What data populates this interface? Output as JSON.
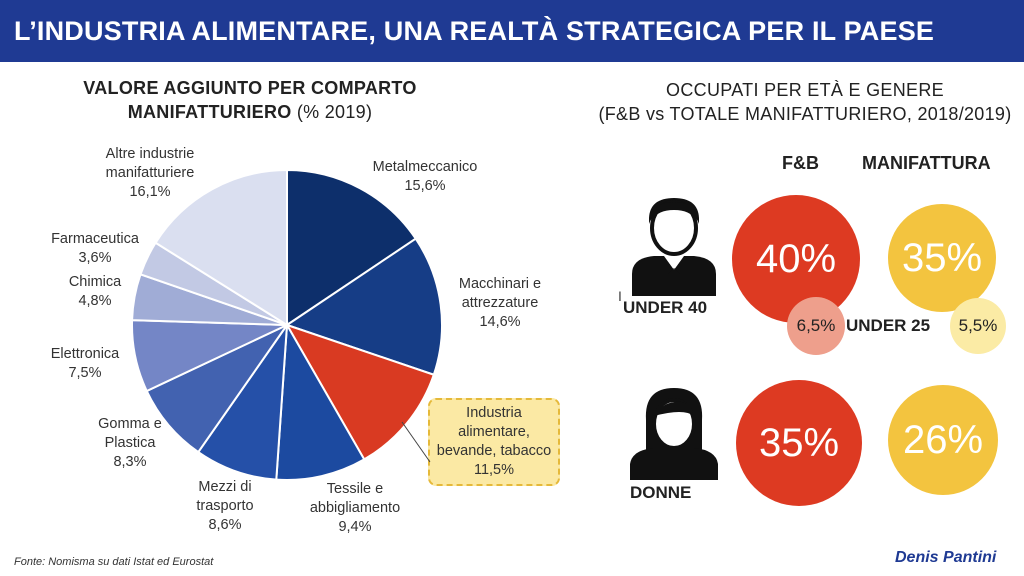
{
  "header": {
    "title": "L’INDUSTRIA ALIMENTARE, UNA REALTÀ STRATEGICA PER IL PAESE"
  },
  "pie_title": {
    "bold_line1": "VALORE AGGIUNTO PER COMPARTO",
    "bold_line2": "MANIFATTURIERO",
    "suffix": " (% 2019)"
  },
  "right_title": {
    "line1": "OCCUPATI PER ETÀ E GENERE",
    "line2": "(F&B vs TOTALE MANIFATTURIERO, 2018/2019)"
  },
  "chart_data": [
    {
      "type": "pie",
      "slices": [
        {
          "label": "Metalmeccanico",
          "value": 15.6,
          "value_text": "15,6%",
          "color": "#0d2f6b"
        },
        {
          "label": "Macchinari e attrezzature",
          "value": 14.6,
          "value_text": "14,6%",
          "color": "#163d86"
        },
        {
          "label": "Industria alimentare, bevande, tabacco",
          "value": 11.5,
          "value_text": "11,5%",
          "color": "#d93a22"
        },
        {
          "label": "Tessile e abbigliamento",
          "value": 9.4,
          "value_text": "9,4%",
          "color": "#1c4aa0"
        },
        {
          "label": "Mezzi di trasporto",
          "value": 8.6,
          "value_text": "8,6%",
          "color": "#2550a8"
        },
        {
          "label": "Gomma e Plastica",
          "value": 8.3,
          "value_text": "8,3%",
          "color": "#4262b0"
        },
        {
          "label": "Elettronica",
          "value": 7.5,
          "value_text": "7,5%",
          "color": "#7486c6"
        },
        {
          "label": "Chimica",
          "value": 4.8,
          "value_text": "4,8%",
          "color": "#a0acd6"
        },
        {
          "label": "Farmaceutica",
          "value": 3.6,
          "value_text": "3,6%",
          "color": "#c2c9e4"
        },
        {
          "label": "Altre industrie manifatturiere",
          "value": 16.1,
          "value_text": "16,1%",
          "color": "#dadff0"
        }
      ]
    },
    {
      "type": "table",
      "columns": [
        "F&B",
        "MANIFATTURA"
      ],
      "rows": [
        {
          "label": "UNDER 40",
          "values": [
            "40%",
            "35%"
          ]
        },
        {
          "label": "UNDER 25",
          "values": [
            "6,5%",
            "5,5%"
          ]
        },
        {
          "label": "DONNE",
          "values": [
            "35%",
            "26%"
          ]
        }
      ]
    }
  ],
  "pie_labels": {
    "metal": {
      "l1": "Metalmeccanico",
      "l2": "15,6%"
    },
    "macch": {
      "l1": "Macchinari e",
      "l2": "attrezzature",
      "l3": "14,6%"
    },
    "alim": "Industria\nalimentare,\nbevande, tabacco\n11,5%",
    "tess": {
      "l1": "Tessile e",
      "l2": "abbigliamento",
      "l3": "9,4%"
    },
    "mezzi": {
      "l1": "Mezzi di",
      "l2": "trasporto",
      "l3": "8,6%"
    },
    "gomma": {
      "l1": "Gomma e",
      "l2": "Plastica",
      "l3": "8,3%"
    },
    "elet": {
      "l1": "Elettronica",
      "l2": "7,5%"
    },
    "chim": {
      "l1": "Chimica",
      "l2": "4,8%"
    },
    "farm": {
      "l1": "Farmaceutica",
      "l2": "3,6%"
    },
    "altre": {
      "l1": "Altre industrie",
      "l2": "manifatturiere",
      "l3": "16,1%"
    }
  },
  "employment": {
    "col_fb": "F&B",
    "col_manif": "MANIFATTURA",
    "under40_label": "UNDER 40",
    "under25_label": "UNDER 25",
    "donne_label": "DONNE",
    "fb_under40": "40%",
    "manif_under40": "35%",
    "fb_under25": "6,5%",
    "manif_under25": "5,5%",
    "fb_donne": "35%",
    "manif_donne": "26%",
    "colors": {
      "red": "#dd3a22",
      "pink": "#ee9f8c",
      "yellow": "#f3c43f",
      "pale_yellow": "#fbeba5"
    }
  },
  "cursor_glyph": "I",
  "footer": {
    "source": "Fonte: Nomisma su dati Istat ed Eurostat",
    "author": "Denis Pantini"
  }
}
